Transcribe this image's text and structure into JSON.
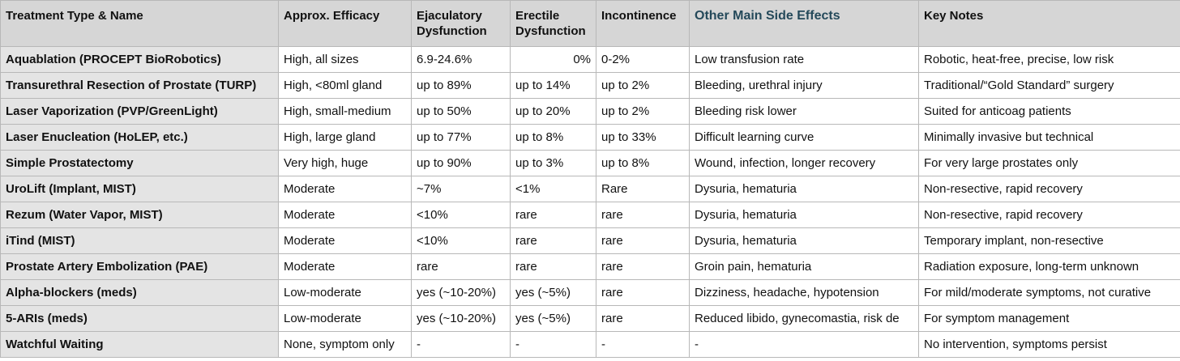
{
  "table": {
    "header": [
      "Treatment Type & Name",
      "Approx. Efficacy",
      "Ejaculatory Dysfunction",
      "Erectile Dysfunction",
      "Incontinence",
      "Other Main Side Effects",
      "Key Notes"
    ],
    "rows": [
      [
        "Aquablation (PROCEPT BioRobotics)",
        "High, all sizes",
        "6.9-24.6%",
        "0%",
        "0-2%",
        "Low transfusion rate",
        "Robotic, heat-free, precise, low risk"
      ],
      [
        "Transurethral Resection of Prostate (TURP)",
        "High, <80ml gland",
        "up to 89%",
        "up to 14%",
        "up to 2%",
        "Bleeding, urethral injury",
        "Traditional/“Gold Standard” surgery"
      ],
      [
        "Laser Vaporization (PVP/GreenLight)",
        "High, small-medium",
        "up to 50%",
        "up to 20%",
        "up to 2%",
        "Bleeding risk lower",
        "Suited for anticoag patients"
      ],
      [
        "Laser Enucleation (HoLEP, etc.)",
        "High, large gland",
        "up to 77%",
        "up to 8%",
        "up to 33%",
        "Difficult learning curve",
        "Minimally invasive but technical"
      ],
      [
        "Simple Prostatectomy",
        "Very high, huge",
        "up to 90%",
        "up to 3%",
        "up to 8%",
        "Wound, infection, longer recovery",
        "For very large prostates only"
      ],
      [
        "UroLift (Implant, MIST)",
        "Moderate",
        "~7%",
        "<1%",
        "Rare",
        "Dysuria, hematuria",
        "Non-resective, rapid recovery"
      ],
      [
        "Rezum (Water Vapor, MIST)",
        "Moderate",
        "<10%",
        "rare",
        "rare",
        "Dysuria, hematuria",
        "Non-resective, rapid recovery"
      ],
      [
        "iTind (MIST)",
        "Moderate",
        "<10%",
        "rare",
        "rare",
        "Dysuria, hematuria",
        "Temporary implant, non-resective"
      ],
      [
        "Prostate Artery Embolization (PAE)",
        "Moderate",
        "rare",
        "rare",
        "rare",
        "Groin pain, hematuria",
        "Radiation exposure, long-term unknown"
      ],
      [
        "Alpha-blockers (meds)",
        "Low-moderate",
        "yes (~10-20%)",
        "yes (~5%)",
        "rare",
        "Dizziness, headache, hypotension",
        "For mild/moderate symptoms, not curative"
      ],
      [
        "5-ARIs (meds)",
        "Low-moderate",
        "yes (~10-20%)",
        "yes (~5%)",
        "rare",
        "Reduced libido, gynecomastia, risk de",
        "For symptom management"
      ],
      [
        "Watchful Waiting",
        "None, symptom only",
        "-",
        "-",
        "-",
        "-",
        "No intervention, symptoms persist"
      ]
    ]
  }
}
